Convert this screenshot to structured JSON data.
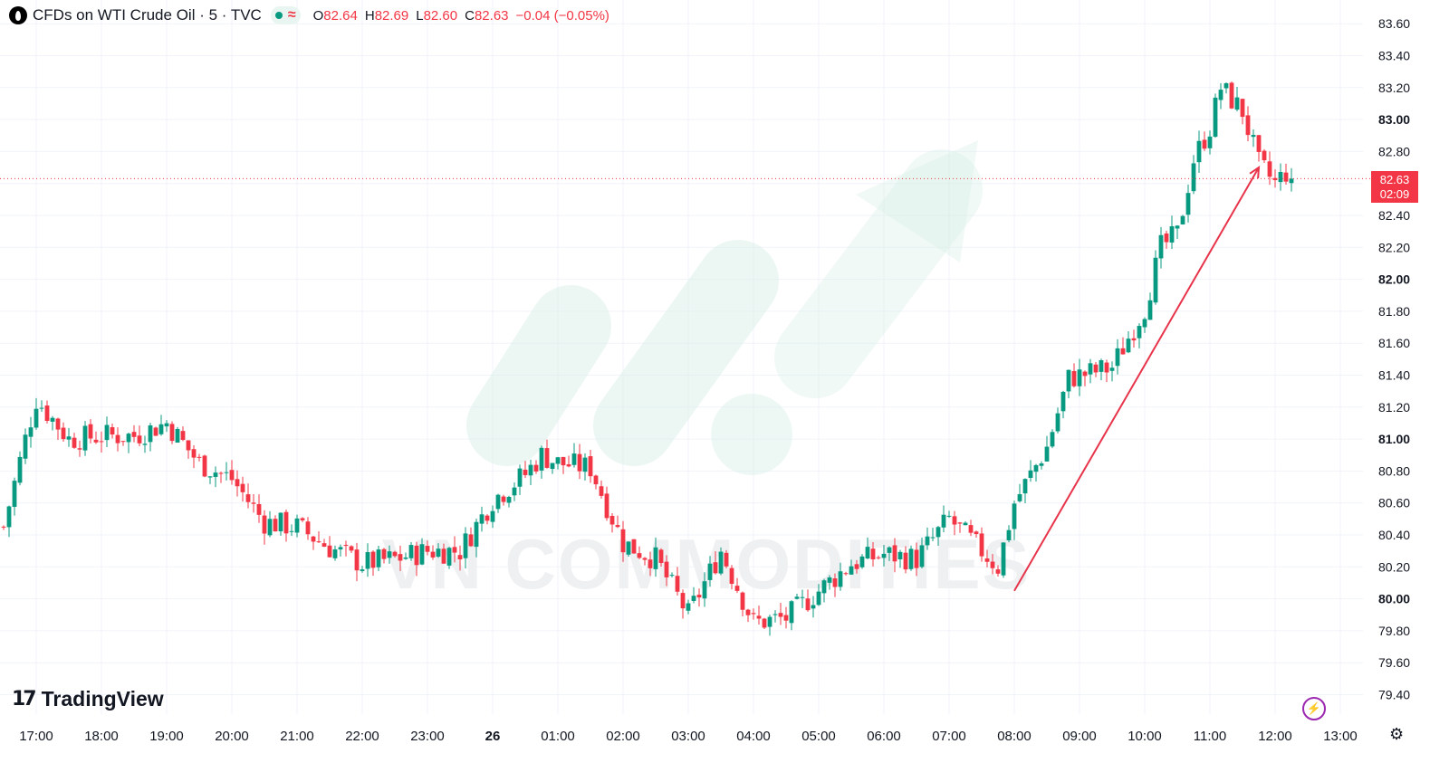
{
  "legend": {
    "symbol_title": "CFDs on WTI Crude Oil · 5 · TVC",
    "open_label": "O",
    "open_value": "82.64",
    "high_label": "H",
    "high_value": "82.69",
    "low_label": "L",
    "low_value": "82.60",
    "close_label": "C",
    "close_value": "82.63",
    "change": "−0.04 (−0.05%)",
    "status_icons": [
      "market-open-dot-icon",
      "delayed-data-icon"
    ]
  },
  "price_tag": {
    "price": "82.63",
    "countdown": "02:09"
  },
  "brand": {
    "name": "TradingView",
    "watermark": "VN COMMODITIES"
  },
  "colors": {
    "up": "#089981",
    "down": "#f23645",
    "annotation_arrow": "#e8344a",
    "watermark": "#d6efe6"
  },
  "chart_data": {
    "type": "candlestick",
    "interval": "5 min",
    "instrument": "CFDs on WTI Crude Oil",
    "y_ticks": [
      "83.60",
      "83.40",
      "83.20",
      "83.00",
      "82.80",
      "82.60",
      "82.40",
      "82.20",
      "82.00",
      "81.80",
      "81.60",
      "81.40",
      "81.20",
      "81.00",
      "80.80",
      "80.60",
      "80.40",
      "80.20",
      "80.00",
      "79.80",
      "79.60",
      "79.40"
    ],
    "y_bold_ticks": [
      "83.00",
      "82.00",
      "81.00",
      "80.00"
    ],
    "x_ticks": [
      "17:00",
      "18:00",
      "19:00",
      "20:00",
      "21:00",
      "22:00",
      "23:00",
      "26",
      "01:00",
      "02:00",
      "03:00",
      "04:00",
      "05:00",
      "06:00",
      "07:00",
      "08:00",
      "09:00",
      "10:00",
      "11:00",
      "12:00",
      "13:00"
    ],
    "ylim": [
      79.34,
      83.66
    ],
    "last_price": 82.63,
    "close_path": [
      [
        "16:30",
        80.45
      ],
      [
        "16:50",
        81.0
      ],
      [
        "17:00",
        81.25
      ],
      [
        "17:30",
        81.0
      ],
      [
        "18:00",
        81.02
      ],
      [
        "18:30",
        81.02
      ],
      [
        "19:00",
        81.1
      ],
      [
        "19:30",
        80.85
      ],
      [
        "20:00",
        80.75
      ],
      [
        "20:30",
        80.48
      ],
      [
        "21:00",
        80.45
      ],
      [
        "21:30",
        80.32
      ],
      [
        "22:00",
        80.22
      ],
      [
        "22:30",
        80.25
      ],
      [
        "23:00",
        80.3
      ],
      [
        "23:30",
        80.3
      ],
      [
        "00:00",
        80.62
      ],
      [
        "00:30",
        80.78
      ],
      [
        "00:45",
        80.9
      ],
      [
        "01:00",
        80.85
      ],
      [
        "01:30",
        80.82
      ],
      [
        "02:00",
        80.35
      ],
      [
        "02:30",
        80.25
      ],
      [
        "03:00",
        79.9
      ],
      [
        "03:30",
        80.3
      ],
      [
        "04:00",
        79.85
      ],
      [
        "04:30",
        79.88
      ],
      [
        "05:00",
        80.05
      ],
      [
        "05:30",
        80.22
      ],
      [
        "06:00",
        80.28
      ],
      [
        "06:30",
        80.25
      ],
      [
        "07:00",
        80.5
      ],
      [
        "07:30",
        80.3
      ],
      [
        "07:45",
        80.2
      ],
      [
        "08:00",
        80.6
      ],
      [
        "08:30",
        80.95
      ],
      [
        "08:50",
        81.38
      ],
      [
        "09:30",
        81.45
      ],
      [
        "10:00",
        81.82
      ],
      [
        "10:15",
        82.2
      ],
      [
        "10:30",
        82.28
      ],
      [
        "10:45",
        82.75
      ],
      [
        "11:00",
        82.95
      ],
      [
        "11:10",
        83.2
      ],
      [
        "11:30",
        83.05
      ],
      [
        "11:45",
        82.72
      ],
      [
        "12:00",
        82.6
      ],
      [
        "12:10",
        82.67
      ],
      [
        "12:15",
        82.63
      ]
    ],
    "annotation": {
      "type": "arrow",
      "from": [
        "08:00",
        80.05
      ],
      "to": [
        "11:45",
        82.7
      ]
    },
    "grid": true
  }
}
